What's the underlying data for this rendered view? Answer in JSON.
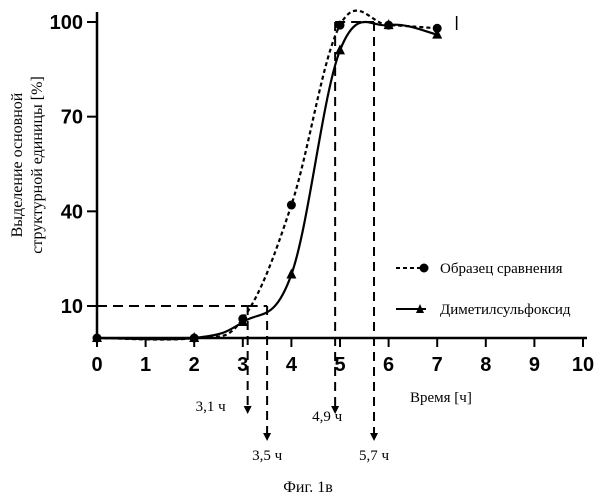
{
  "chart_data": {
    "type": "line",
    "xlabel": "Время [ч]",
    "ylabel_lines": [
      "Выделение основной",
      "структурной единицы [%]"
    ],
    "xlim": [
      0,
      10
    ],
    "ylim": [
      -2,
      100
    ],
    "x_ticks": [
      "0",
      "1",
      "2",
      "3",
      "4",
      "5",
      "6",
      "7",
      "8",
      "9",
      "10"
    ],
    "y_ticks": [
      {
        "label": "10",
        "value": 10
      },
      {
        "label": "40",
        "value": 40
      },
      {
        "label": "70",
        "value": 70
      },
      {
        "label": "100",
        "value": 100
      }
    ],
    "series": [
      {
        "name": "Образец сравнения",
        "marker": "circle",
        "line_style": "dashed",
        "x": [
          0,
          2,
          3,
          4,
          5,
          6,
          7
        ],
        "y": [
          0,
          0,
          6,
          42,
          99,
          99,
          98
        ]
      },
      {
        "name": "Диметилсульфоксид",
        "marker": "triangle",
        "line_style": "solid",
        "x": [
          0,
          2,
          3,
          4,
          5,
          6,
          7
        ],
        "y": [
          0,
          0,
          5,
          20,
          91,
          99,
          96
        ]
      }
    ],
    "annotations": [
      {
        "label": "3,1 ч",
        "x": 3.1
      },
      {
        "label": "3,5 ч",
        "x": 3.5
      },
      {
        "label": "4,9 ч",
        "x": 4.9
      },
      {
        "label": "5,7 ч",
        "x": 5.7
      }
    ],
    "legend_position": "right",
    "caption": "Фиг. 1в"
  }
}
